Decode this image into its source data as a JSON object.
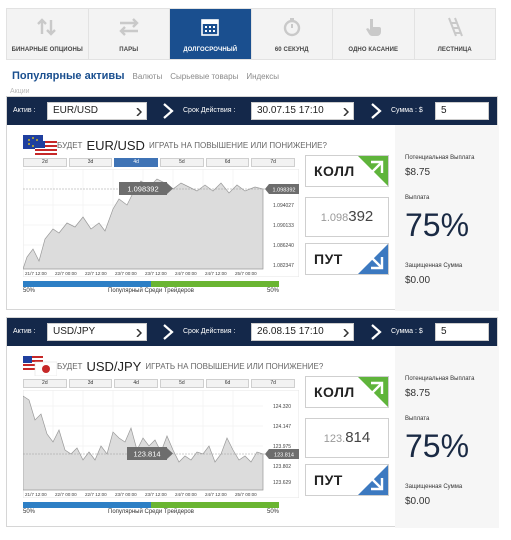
{
  "nav": {
    "tabs": [
      {
        "label": "БИНАРНЫЕ ОПЦИОНЫ",
        "icon": "arrows-updown-icon"
      },
      {
        "label": "ПАРЫ",
        "icon": "swap-arrows-icon"
      },
      {
        "label": "ДОЛГОСРОЧНЫЙ",
        "icon": "calendar-icon",
        "active": true
      },
      {
        "label": "60 СЕКУНД",
        "icon": "stopwatch-icon"
      },
      {
        "label": "ОДНО КАСАНИЕ",
        "icon": "pointer-hand-icon"
      },
      {
        "label": "ЛЕСТНИЦА",
        "icon": "ladder-icon"
      }
    ]
  },
  "categories": {
    "active": "Популярные активы",
    "items": [
      "Валюты",
      "Сырьевые товары",
      "Индексы"
    ],
    "extra": "Акции"
  },
  "panels": [
    {
      "asset_label": "Актив :",
      "asset_value": "EUR/USD",
      "expiry_label": "Срок Действия :",
      "expiry_value": "30.07.15 17:10",
      "sum_label": "Сумма : $",
      "sum_value": "5",
      "question_prefix": "БУДЕТ",
      "pair": "EUR/USD",
      "question_suffix": "ИГРАТЬ НА ПОВЫШЕНИЕ ИЛИ ПОНИЖЕНИЕ?",
      "timeframes": [
        "2d",
        "3d",
        "4d",
        "5d",
        "6d",
        "7d"
      ],
      "selected_timeframe": "4d",
      "chart": {
        "marker_left": "1.098392",
        "marker_right": "1.098392",
        "yticks": [
          "1.094027",
          "1.090133",
          "1.086240",
          "1.082347"
        ],
        "xticks": [
          "21/7 12:00",
          "22/7 00:00",
          "22/7 12:00",
          "23/7 00:00",
          "23/7 12:00",
          "24/7 00:00",
          "24/7 12:00",
          "25/7 00:00"
        ]
      },
      "popular": {
        "left": "50%",
        "center": "Популярный Среди Трейдеров",
        "right": "50%",
        "up_fraction": 0.5
      },
      "call_label": "КОЛЛ",
      "put_label": "ПУТ",
      "price_prefix": "1.098",
      "price_bold": "392",
      "potential_label": "Потенциальная Выплата",
      "potential_value": "$8.75",
      "payout_label": "Выплата",
      "payout_value": "75%",
      "protected_label": "Защищенная Сумма",
      "protected_value": "$0.00"
    },
    {
      "asset_label": "Актив :",
      "asset_value": "USD/JPY",
      "expiry_label": "Срок Действия :",
      "expiry_value": "26.08.15 17:10",
      "sum_label": "Сумма : $",
      "sum_value": "5",
      "question_prefix": "БУДЕТ",
      "pair": "USD/JPY",
      "question_suffix": "ИГРАТЬ НА ПОВЫШЕНИЕ ИЛИ ПОНИЖЕНИЕ?",
      "timeframes": [
        "2d",
        "3d",
        "4d",
        "5d",
        "6d",
        "7d"
      ],
      "selected_timeframe": "",
      "chart": {
        "marker_left": "123.814",
        "marker_right": "123.814",
        "yticks": [
          "124.320",
          "124.147",
          "123.975",
          "123.802",
          "123.629"
        ],
        "xticks": [
          "21/7 12:00",
          "22/7 00:00",
          "22/7 12:00",
          "23/7 00:00",
          "23/7 12:00",
          "24/7 00:00",
          "24/7 12:00",
          "25/7 00:00"
        ]
      },
      "popular": {
        "left": "50%",
        "center": "Популярный Среди Трейдеров",
        "right": "50%",
        "up_fraction": 0.5
      },
      "call_label": "КОЛЛ",
      "put_label": "ПУТ",
      "price_prefix": "123.",
      "price_bold": "814",
      "potential_label": "Потенциальная Выплата",
      "potential_value": "$8.75",
      "payout_label": "Выплата",
      "payout_value": "75%",
      "protected_label": "Защищенная Сумма",
      "protected_value": "$0.00"
    }
  ]
}
